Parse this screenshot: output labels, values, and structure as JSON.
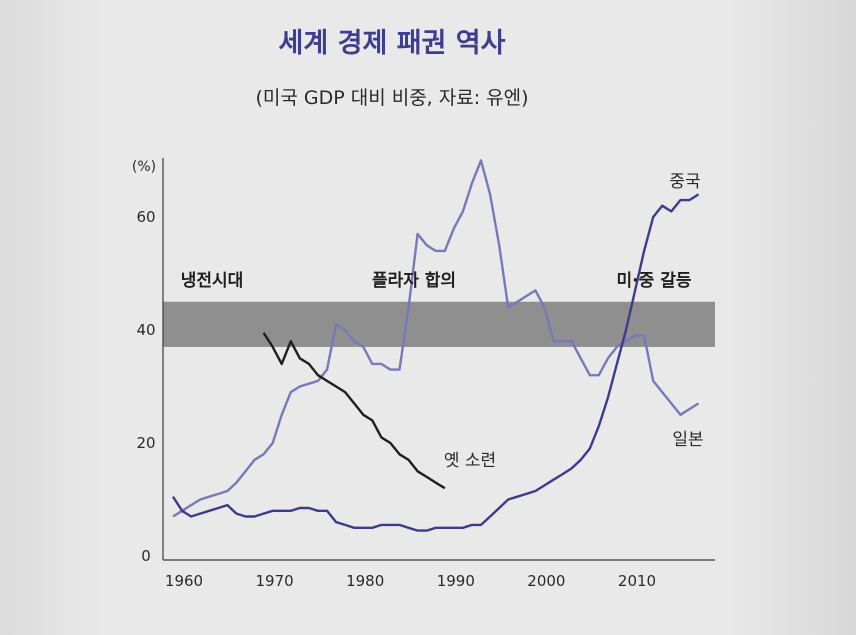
{
  "chart_data": {
    "type": "line",
    "title": "세계 경제 패권 역사",
    "subtitle": "(미국 GDP 대비 비중, 자료: 유엔)",
    "ylabel": "(%)",
    "xlabel": "",
    "xlim": [
      1959,
      2020
    ],
    "ylim": [
      0,
      70
    ],
    "xticks": [
      1960,
      1970,
      1980,
      1990,
      2000,
      2010
    ],
    "yticks": [
      0,
      20,
      40,
      60
    ],
    "band": {
      "y_from": 37,
      "y_to": 45,
      "color": "#8f8f8f"
    },
    "eras": [
      "냉전시대",
      "플라자 합의",
      "미·중 갈등"
    ],
    "series": [
      {
        "name": "일본",
        "color": "#7a78b8",
        "points": [
          [
            1960,
            7
          ],
          [
            1961,
            8
          ],
          [
            1962,
            9
          ],
          [
            1963,
            10
          ],
          [
            1964,
            10.5
          ],
          [
            1965,
            11
          ],
          [
            1966,
            11.5
          ],
          [
            1967,
            13
          ],
          [
            1968,
            15
          ],
          [
            1969,
            17
          ],
          [
            1970,
            18
          ],
          [
            1971,
            20
          ],
          [
            1972,
            25
          ],
          [
            1973,
            29
          ],
          [
            1974,
            30
          ],
          [
            1975,
            30.5
          ],
          [
            1976,
            31
          ],
          [
            1977,
            33
          ],
          [
            1978,
            41
          ],
          [
            1979,
            40
          ],
          [
            1980,
            38
          ],
          [
            1981,
            37
          ],
          [
            1982,
            34
          ],
          [
            1983,
            34
          ],
          [
            1984,
            33
          ],
          [
            1985,
            33
          ],
          [
            1986,
            44
          ],
          [
            1987,
            57
          ],
          [
            1988,
            55
          ],
          [
            1989,
            54
          ],
          [
            1990,
            54
          ],
          [
            1991,
            58
          ],
          [
            1992,
            61
          ],
          [
            1993,
            66
          ],
          [
            1994,
            70
          ],
          [
            1995,
            64
          ],
          [
            1996,
            55
          ],
          [
            1997,
            44
          ],
          [
            1998,
            45
          ],
          [
            1999,
            46
          ],
          [
            2000,
            47
          ],
          [
            2001,
            44
          ],
          [
            2002,
            38
          ],
          [
            2003,
            38
          ],
          [
            2004,
            38
          ],
          [
            2005,
            35
          ],
          [
            2006,
            32
          ],
          [
            2007,
            32
          ],
          [
            2008,
            35
          ],
          [
            2009,
            37
          ],
          [
            2010,
            38
          ],
          [
            2011,
            39
          ],
          [
            2012,
            39
          ],
          [
            2013,
            31
          ],
          [
            2014,
            29
          ],
          [
            2015,
            27
          ],
          [
            2016,
            25
          ],
          [
            2017,
            26
          ],
          [
            2018,
            27
          ]
        ]
      },
      {
        "name": "중국",
        "color": "#3d3c8c",
        "points": [
          [
            1960,
            10.5
          ],
          [
            1961,
            8
          ],
          [
            1962,
            7
          ],
          [
            1963,
            7.5
          ],
          [
            1964,
            8
          ],
          [
            1965,
            8.5
          ],
          [
            1966,
            9
          ],
          [
            1967,
            7.5
          ],
          [
            1968,
            7
          ],
          [
            1969,
            7
          ],
          [
            1970,
            7.5
          ],
          [
            1971,
            8
          ],
          [
            1972,
            8
          ],
          [
            1973,
            8
          ],
          [
            1974,
            8.5
          ],
          [
            1975,
            8.5
          ],
          [
            1976,
            8
          ],
          [
            1977,
            8
          ],
          [
            1978,
            6
          ],
          [
            1979,
            5.5
          ],
          [
            1980,
            5
          ],
          [
            1981,
            5
          ],
          [
            1982,
            5
          ],
          [
            1983,
            5.5
          ],
          [
            1984,
            5.5
          ],
          [
            1985,
            5.5
          ],
          [
            1986,
            5
          ],
          [
            1987,
            4.5
          ],
          [
            1988,
            4.5
          ],
          [
            1989,
            5
          ],
          [
            1990,
            5
          ],
          [
            1991,
            5
          ],
          [
            1992,
            5
          ],
          [
            1993,
            5.5
          ],
          [
            1994,
            5.5
          ],
          [
            1995,
            7
          ],
          [
            1996,
            8.5
          ],
          [
            1997,
            10
          ],
          [
            1998,
            10.5
          ],
          [
            1999,
            11
          ],
          [
            2000,
            11.5
          ],
          [
            2001,
            12.5
          ],
          [
            2002,
            13.5
          ],
          [
            2003,
            14.5
          ],
          [
            2004,
            15.5
          ],
          [
            2005,
            17
          ],
          [
            2006,
            19
          ],
          [
            2007,
            23
          ],
          [
            2008,
            28
          ],
          [
            2009,
            34
          ],
          [
            2010,
            40
          ],
          [
            2011,
            47
          ],
          [
            2012,
            54
          ],
          [
            2013,
            60
          ],
          [
            2014,
            62
          ],
          [
            2015,
            61
          ],
          [
            2016,
            63
          ],
          [
            2017,
            63
          ],
          [
            2018,
            64
          ]
        ]
      },
      {
        "name": "옛 소련",
        "color": "#1f1f1f",
        "points": [
          [
            1970,
            39.5
          ],
          [
            1971,
            37
          ],
          [
            1972,
            34
          ],
          [
            1973,
            38
          ],
          [
            1974,
            35
          ],
          [
            1975,
            34
          ],
          [
            1976,
            32
          ],
          [
            1977,
            31
          ],
          [
            1978,
            30
          ],
          [
            1979,
            29
          ],
          [
            1980,
            27
          ],
          [
            1981,
            25
          ],
          [
            1982,
            24
          ],
          [
            1983,
            21
          ],
          [
            1984,
            20
          ],
          [
            1985,
            18
          ],
          [
            1986,
            17
          ],
          [
            1987,
            15
          ],
          [
            1988,
            14
          ],
          [
            1989,
            13
          ],
          [
            1990,
            12
          ]
        ]
      }
    ]
  }
}
